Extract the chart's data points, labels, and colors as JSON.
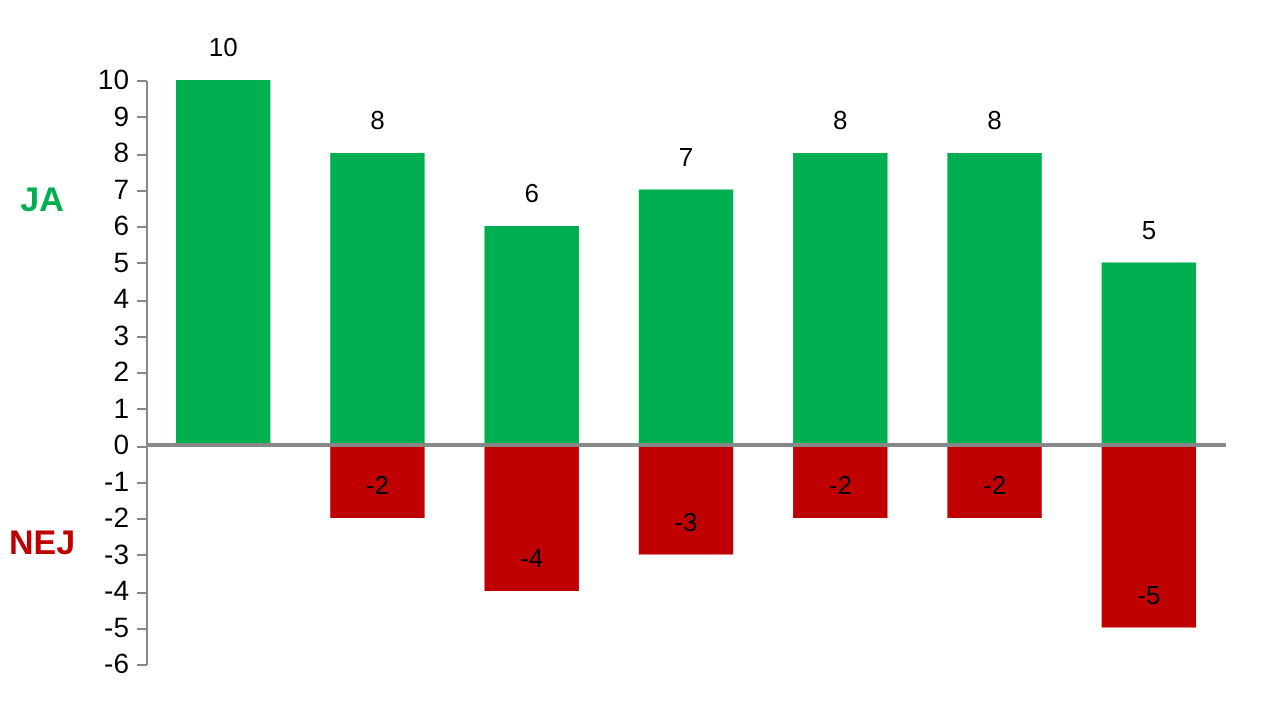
{
  "chart_data": {
    "type": "bar",
    "stacked": true,
    "categories": [
      null,
      null,
      null,
      null,
      null,
      null,
      null
    ],
    "series": [
      {
        "name": "JA",
        "color": "#00b050",
        "values": [
          10,
          8,
          6,
          7,
          8,
          8,
          5
        ]
      },
      {
        "name": "NEJ",
        "color": "#c00000",
        "values": [
          null,
          -2,
          -4,
          -3,
          -2,
          -2,
          -5
        ]
      }
    ],
    "ylim": [
      -6,
      10
    ],
    "yticks": [
      -6,
      -5,
      -4,
      -3,
      -2,
      -1,
      0,
      1,
      2,
      3,
      4,
      5,
      6,
      7,
      8,
      9,
      10
    ],
    "data_labels": true,
    "ref_lines": [
      {
        "axis": "y",
        "value": 0,
        "color": "#888888"
      }
    ]
  }
}
